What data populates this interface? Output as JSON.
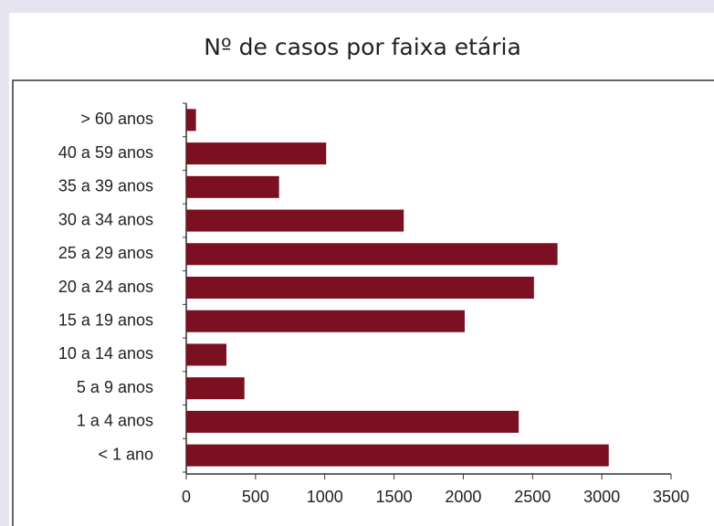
{
  "chart_data": {
    "type": "bar",
    "orientation": "horizontal",
    "title": "Nº de casos por faixa etária",
    "categories": [
      "> 60 anos",
      "40 a 59 anos",
      "35 a 39 anos",
      "30 a 34 anos",
      "25 a 29 anos",
      "20 a 24 anos",
      "15 a 19 anos",
      "10 a 14 anos",
      "5 a 9 anos",
      "1 a 4 anos",
      "< 1 ano"
    ],
    "values": [
      70,
      1010,
      670,
      1570,
      2680,
      2510,
      2010,
      290,
      420,
      2400,
      3050
    ],
    "color": "#7a1021",
    "xlim": [
      0,
      3500
    ],
    "xticks": [
      0,
      500,
      1000,
      1500,
      2000,
      2500,
      3000,
      3500
    ]
  }
}
